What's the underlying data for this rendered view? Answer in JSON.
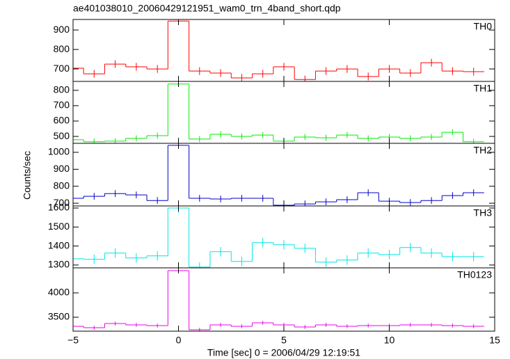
{
  "chart_data": [
    {
      "type": "step",
      "title": "ae401038010_20060429121951_wam0_trn_4band_short.qdp",
      "label": "TH0",
      "color": "#ff0000",
      "x": [
        -5,
        -4,
        -3,
        -2,
        -1,
        0,
        1,
        2,
        3,
        4,
        5,
        6,
        7,
        8,
        9,
        10,
        11,
        12,
        13,
        14
      ],
      "values": [
        704,
        675,
        725,
        711,
        700,
        946,
        689,
        679,
        654,
        675,
        711,
        646,
        689,
        700,
        661,
        700,
        679,
        732,
        689,
        686
      ],
      "errors": [
        20,
        20,
        20,
        20,
        20,
        20,
        20,
        20,
        20,
        20,
        20,
        20,
        20,
        20,
        20,
        20,
        20,
        20,
        20,
        20
      ],
      "ylim": [
        636,
        954
      ],
      "yticks": [
        700,
        800,
        900
      ]
    },
    {
      "type": "step",
      "label": "TH1",
      "color": "#00ee00",
      "x": [
        -5,
        -4,
        -3,
        -2,
        -1,
        0,
        1,
        2,
        3,
        4,
        5,
        6,
        7,
        8,
        9,
        10,
        11,
        12,
        13,
        14
      ],
      "values": [
        478,
        465,
        469,
        487,
        505,
        841,
        483,
        514,
        500,
        509,
        469,
        496,
        491,
        509,
        487,
        496,
        487,
        496,
        527,
        465
      ],
      "errors": [
        20,
        20,
        20,
        20,
        20,
        20,
        20,
        20,
        20,
        20,
        20,
        20,
        20,
        20,
        20,
        20,
        20,
        20,
        20,
        20
      ],
      "ylim": [
        455,
        858
      ],
      "yticks": [
        500,
        600,
        700,
        800
      ]
    },
    {
      "type": "step",
      "label": "TH2",
      "color": "#0000cc",
      "ylabel": "Counts/sec",
      "x": [
        -5,
        -4,
        -3,
        -2,
        -1,
        0,
        1,
        2,
        3,
        4,
        5,
        6,
        7,
        8,
        9,
        10,
        11,
        12,
        13,
        14
      ],
      "values": [
        729,
        741,
        757,
        749,
        716,
        1041,
        729,
        725,
        729,
        729,
        688,
        696,
        708,
        721,
        762,
        712,
        704,
        716,
        745,
        762
      ],
      "errors": [
        20,
        20,
        20,
        20,
        20,
        20,
        20,
        20,
        20,
        20,
        20,
        20,
        20,
        20,
        20,
        20,
        20,
        20,
        20,
        20
      ],
      "ylim": [
        684,
        1053
      ],
      "yticks": [
        700,
        800,
        900,
        1000
      ]
    },
    {
      "type": "step",
      "label": "TH3",
      "color": "#00e5e5",
      "x": [
        -5,
        -4,
        -3,
        -2,
        -1,
        0,
        1,
        2,
        3,
        4,
        5,
        6,
        7,
        8,
        9,
        10,
        11,
        12,
        13,
        14
      ],
      "values": [
        1333,
        1330,
        1363,
        1337,
        1348,
        1600,
        1289,
        1370,
        1319,
        1418,
        1407,
        1388,
        1315,
        1326,
        1363,
        1355,
        1392,
        1363,
        1344,
        1344
      ],
      "errors": [
        25,
        25,
        25,
        25,
        25,
        25,
        25,
        25,
        25,
        25,
        25,
        25,
        25,
        25,
        25,
        25,
        25,
        25,
        25,
        25
      ],
      "ylim": [
        1285,
        1611
      ],
      "yticks": [
        1300,
        1400,
        1500,
        1600
      ]
    },
    {
      "type": "step",
      "label": "TH0123",
      "color": "#ee00ee",
      "xlabel": "Time [sec] 0 = 2006/04/29 12:19:51",
      "x": [
        -5,
        -4,
        -3,
        -2,
        -1,
        0,
        1,
        2,
        3,
        4,
        5,
        6,
        7,
        8,
        9,
        10,
        11,
        12,
        13,
        14
      ],
      "values": [
        3314,
        3286,
        3371,
        3343,
        3329,
        4457,
        3243,
        3343,
        3314,
        3386,
        3343,
        3300,
        3343,
        3314,
        3329,
        3329,
        3343,
        3343,
        3329,
        3314
      ],
      "errors": [
        40,
        40,
        40,
        40,
        40,
        40,
        40,
        40,
        40,
        40,
        40,
        40,
        40,
        40,
        40,
        40,
        40,
        40,
        40,
        40
      ],
      "ylim": [
        3214,
        4514
      ],
      "yticks": [
        3500,
        4000
      ],
      "xlim": [
        -5,
        15
      ],
      "xticks": [
        {
          "value": -5,
          "label": "−5"
        },
        0,
        5,
        10,
        15
      ]
    }
  ]
}
